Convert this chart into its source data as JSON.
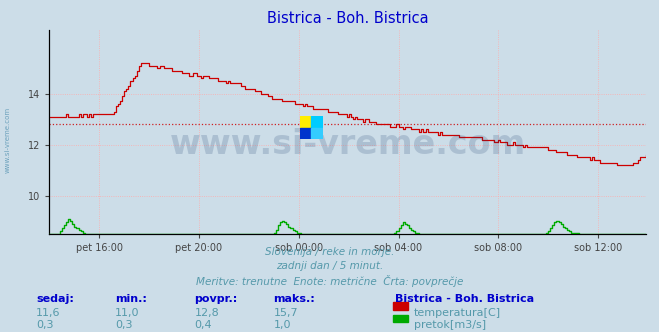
{
  "title": "Bistrica - Boh. Bistrica",
  "title_color": "#0000cc",
  "bg_color": "#ccdde8",
  "plot_bg_color": "#ccdde8",
  "grid_color": "#ffaaaa",
  "grid_style": ":",
  "xlim": [
    0,
    287
  ],
  "ylim_temp": [
    8.5,
    16.5
  ],
  "yticks_temp": [
    10,
    12,
    14
  ],
  "avg_temp": 12.8,
  "avg_flow": 0.4,
  "subtitle_lines": [
    "Slovenija / reke in morje.",
    "zadnji dan / 5 minut.",
    "Meritve: trenutne  Enote: metrične  Črta: povprečje"
  ],
  "subtitle_color": "#5599aa",
  "table_header": [
    "sedaj:",
    "min.:",
    "povpr.:",
    "maks.:"
  ],
  "table_header_color": "#0000cc",
  "table_data_row1": [
    "11,6",
    "11,0",
    "12,8",
    "15,7"
  ],
  "table_data_row2": [
    "0,3",
    "0,3",
    "0,4",
    "1,0"
  ],
  "table_data_color": "#5599aa",
  "legend_title": "Bistrica - Boh. Bistrica",
  "legend_title_color": "#0000cc",
  "legend_items": [
    "temperatura[C]",
    "pretok[m3/s]"
  ],
  "legend_colors": [
    "#cc0000",
    "#00aa00"
  ],
  "watermark_text": "www.si-vreme.com",
  "watermark_color": "#1a3a6a",
  "watermark_alpha": 0.18,
  "sidebar_text": "www.si-vreme.com",
  "sidebar_color": "#4488aa",
  "xtick_labels": [
    "pet 16:00",
    "pet 20:00",
    "sob 00:00",
    "sob 04:00",
    "sob 08:00",
    "sob 12:00"
  ],
  "xtick_positions": [
    24,
    72,
    120,
    168,
    216,
    264
  ],
  "temp_color": "#cc0000",
  "flow_color": "#00aa00",
  "flow_line_color": "#0000cc",
  "logo_colors": [
    "#ffee00",
    "#00ccff",
    "#0033cc",
    "#33ccff"
  ],
  "figsize": [
    6.59,
    3.32
  ],
  "dpi": 100
}
